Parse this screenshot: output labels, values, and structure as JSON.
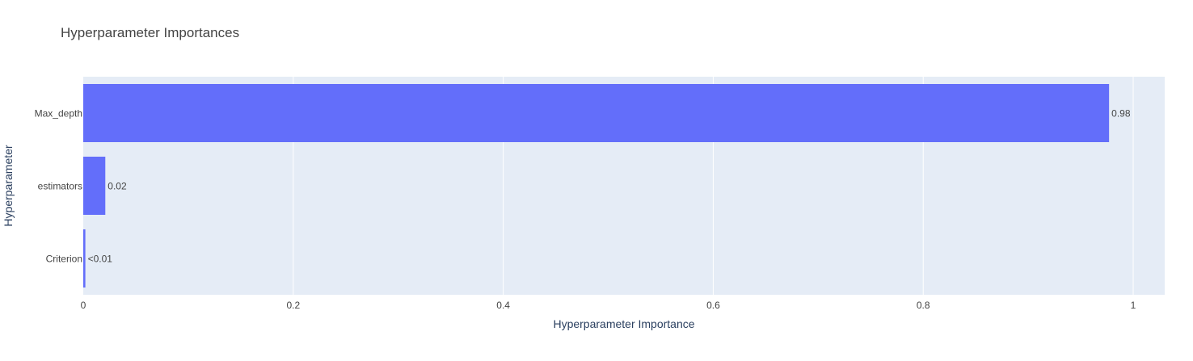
{
  "chart_data": {
    "type": "bar",
    "orientation": "horizontal",
    "title": "Hyperparameter Importances",
    "xlabel": "Hyperparameter Importance",
    "ylabel": "Hyperparameter",
    "categories": [
      "Max_depth",
      "estimators",
      "Criterion"
    ],
    "values": [
      0.977,
      0.021,
      0.002
    ],
    "data_labels": [
      "0.98",
      "0.02",
      "<0.01"
    ],
    "xlim": [
      0,
      1.03
    ],
    "xticks": [
      0,
      0.2,
      0.4,
      0.6,
      0.8,
      1
    ],
    "xtick_labels": [
      "0",
      "0.2",
      "0.4",
      "0.6",
      "0.8",
      "1"
    ],
    "grid": true,
    "colors": {
      "bar": "#636efa",
      "plot_background": "#e5ecf6",
      "grid": "#ffffff",
      "text": "#2a3f5f",
      "tick_text": "#444444",
      "title_text": "#444444"
    }
  }
}
